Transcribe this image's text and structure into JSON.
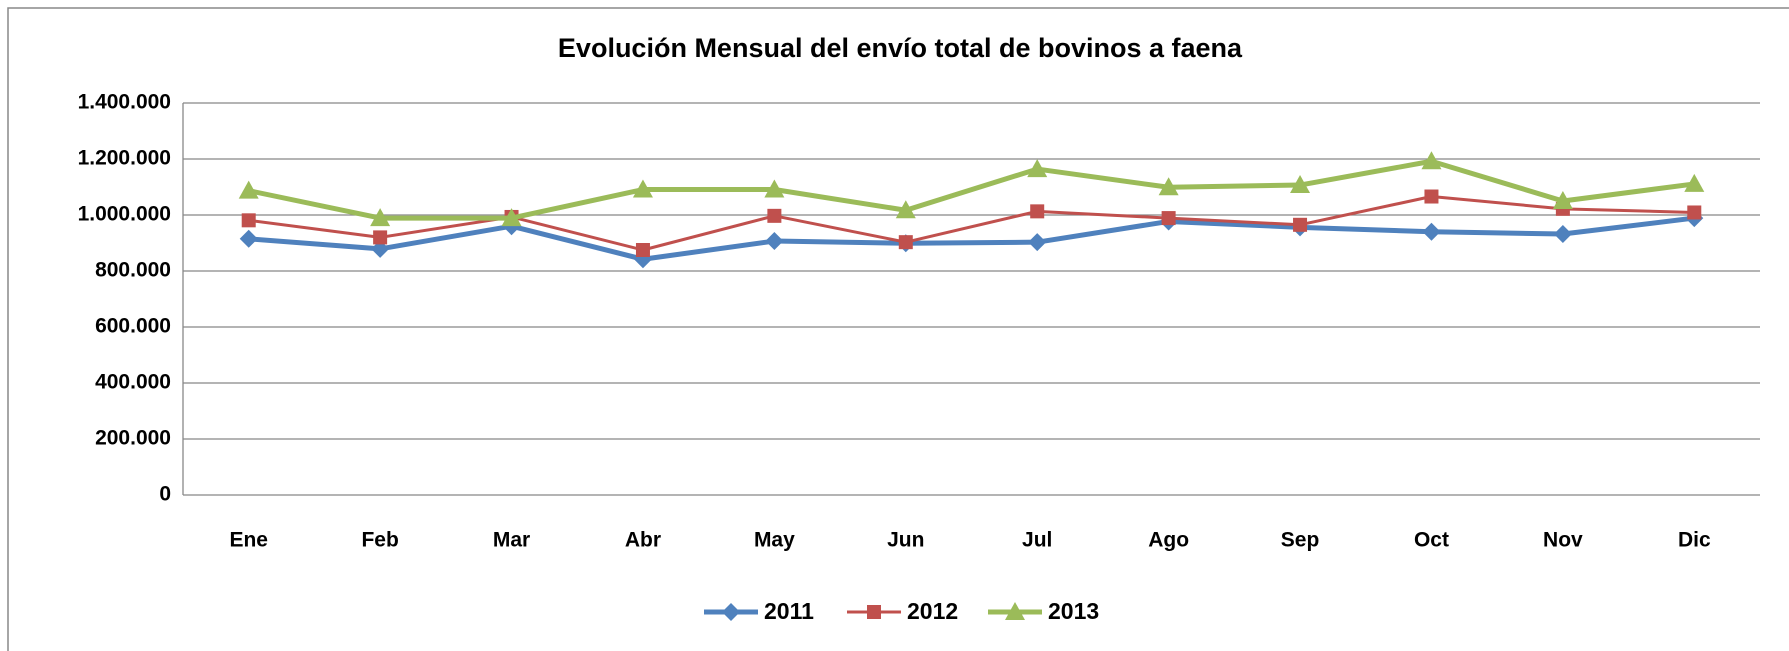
{
  "chart_data": {
    "type": "line",
    "title": "Evolución Mensual del envío total  de bovinos a faena",
    "categories": [
      "Ene",
      "Feb",
      "Mar",
      "Abr",
      "May",
      "Jun",
      "Jul",
      "Ago",
      "Sep",
      "Oct",
      "Nov",
      "Dic"
    ],
    "series": [
      {
        "name": "2011",
        "color": "#4f81bd",
        "marker": "diamond",
        "values": [
          915000,
          879000,
          960000,
          842000,
          907000,
          899000,
          903000,
          977000,
          956000,
          940000,
          932000,
          989000
        ]
      },
      {
        "name": "2012",
        "color": "#c0504d",
        "marker": "square",
        "values": [
          981000,
          920000,
          993000,
          875000,
          997000,
          903000,
          1013000,
          989000,
          965000,
          1066000,
          1022000,
          1009000
        ]
      },
      {
        "name": "2013",
        "color": "#9bbb59",
        "marker": "triangle",
        "values": [
          1087000,
          989000,
          989000,
          1091000,
          1091000,
          1017000,
          1164000,
          1099000,
          1107000,
          1192000,
          1050000,
          1111000
        ]
      }
    ],
    "ylim": [
      0,
      1400000
    ],
    "yticks": [
      0,
      {
        "value": 200000,
        "label": "200.000"
      },
      {
        "value": 400000,
        "label": "400.000"
      },
      {
        "value": 600000,
        "label": "600.000"
      },
      {
        "value": 800000,
        "label": "800.000"
      },
      {
        "value": 1000000,
        "label": "1.000.000"
      },
      {
        "value": 1200000,
        "label": "1.200.000"
      },
      {
        "value": 1400000,
        "label": "1.400.000"
      }
    ],
    "grid": true,
    "legend": "bottom"
  }
}
